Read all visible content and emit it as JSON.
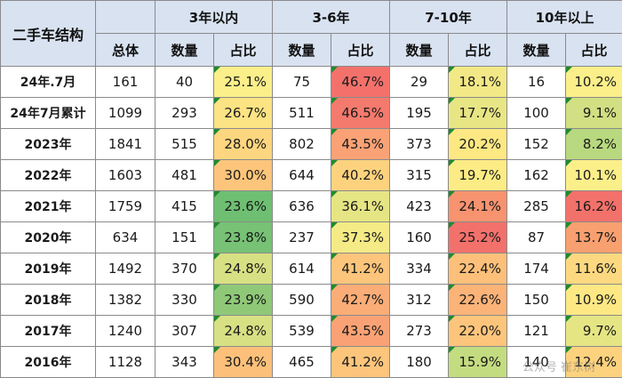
{
  "table": {
    "corner_label": "二手车结构",
    "total_label": "总体",
    "groups": [
      {
        "label": "3年以内"
      },
      {
        "label": "3-6年"
      },
      {
        "label": "7-10年"
      },
      {
        "label": "10年以上"
      }
    ],
    "count_label": "数量",
    "share_label": "占比",
    "rows": [
      {
        "label": "24年.7月",
        "total": "161",
        "cells": [
          {
            "count": "40",
            "share": "25.1%",
            "color": "#fbef8a"
          },
          {
            "count": "75",
            "share": "46.7%",
            "color": "#f3716b"
          },
          {
            "count": "29",
            "share": "18.1%",
            "color": "#f2e886"
          },
          {
            "count": "16",
            "share": "10.2%",
            "color": "#fbef8a"
          }
        ]
      },
      {
        "label": "24年7月累计",
        "total": "1099",
        "cells": [
          {
            "count": "293",
            "share": "26.7%",
            "color": "#fce383"
          },
          {
            "count": "511",
            "share": "46.5%",
            "color": "#f47a6d"
          },
          {
            "count": "195",
            "share": "17.7%",
            "color": "#e7e584"
          },
          {
            "count": "100",
            "share": "9.1%",
            "color": "#d2df82"
          }
        ]
      },
      {
        "label": "2023年",
        "total": "1841",
        "cells": [
          {
            "count": "515",
            "share": "28.0%",
            "color": "#fdd67f"
          },
          {
            "count": "802",
            "share": "43.5%",
            "color": "#faa275"
          },
          {
            "count": "373",
            "share": "20.2%",
            "color": "#fde883"
          },
          {
            "count": "152",
            "share": "8.2%",
            "color": "#b8d97f"
          }
        ]
      },
      {
        "label": "2022年",
        "total": "1603",
        "cells": [
          {
            "count": "481",
            "share": "30.0%",
            "color": "#fcc57b"
          },
          {
            "count": "644",
            "share": "40.2%",
            "color": "#fdd27e"
          },
          {
            "count": "315",
            "share": "19.7%",
            "color": "#fdec85"
          },
          {
            "count": "162",
            "share": "10.1%",
            "color": "#fbef8a"
          }
        ]
      },
      {
        "label": "2021年",
        "total": "1759",
        "cells": [
          {
            "count": "415",
            "share": "23.6%",
            "color": "#6fbf73"
          },
          {
            "count": "636",
            "share": "36.1%",
            "color": "#e6e584"
          },
          {
            "count": "423",
            "share": "24.1%",
            "color": "#f7936f"
          },
          {
            "count": "285",
            "share": "16.2%",
            "color": "#f3716b"
          }
        ]
      },
      {
        "label": "2020年",
        "total": "634",
        "cells": [
          {
            "count": "151",
            "share": "23.8%",
            "color": "#77c275"
          },
          {
            "count": "237",
            "share": "37.3%",
            "color": "#f4ea86"
          },
          {
            "count": "160",
            "share": "25.2%",
            "color": "#f3716b"
          },
          {
            "count": "87",
            "share": "13.7%",
            "color": "#f8a06f"
          }
        ]
      },
      {
        "label": "2019年",
        "total": "1492",
        "cells": [
          {
            "count": "370",
            "share": "24.8%",
            "color": "#d7e083"
          },
          {
            "count": "614",
            "share": "41.2%",
            "color": "#fcc57b"
          },
          {
            "count": "334",
            "share": "22.4%",
            "color": "#fcc07a"
          },
          {
            "count": "174",
            "share": "11.6%",
            "color": "#fcd980"
          }
        ]
      },
      {
        "label": "2018年",
        "total": "1382",
        "cells": [
          {
            "count": "330",
            "share": "23.9%",
            "color": "#8fc978"
          },
          {
            "count": "590",
            "share": "42.7%",
            "color": "#fbad77"
          },
          {
            "count": "312",
            "share": "22.6%",
            "color": "#fbb378"
          },
          {
            "count": "150",
            "share": "10.9%",
            "color": "#fde884"
          }
        ]
      },
      {
        "label": "2017年",
        "total": "1240",
        "cells": [
          {
            "count": "307",
            "share": "24.8%",
            "color": "#d7e083"
          },
          {
            "count": "539",
            "share": "43.5%",
            "color": "#faa275"
          },
          {
            "count": "273",
            "share": "22.0%",
            "color": "#fcc57b"
          },
          {
            "count": "121",
            "share": "9.7%",
            "color": "#e5e584"
          }
        ]
      },
      {
        "label": "2016年",
        "total": "1128",
        "cells": [
          {
            "count": "343",
            "share": "30.4%",
            "color": "#fcc07a"
          },
          {
            "count": "465",
            "share": "41.2%",
            "color": "#fcc57b"
          },
          {
            "count": "180",
            "share": "15.9%",
            "color": "#c4dc80"
          },
          {
            "count": "140",
            "share": "12.4%",
            "color": "#fcd27e"
          }
        ]
      }
    ]
  },
  "watermark": "公众号 崔东树"
}
